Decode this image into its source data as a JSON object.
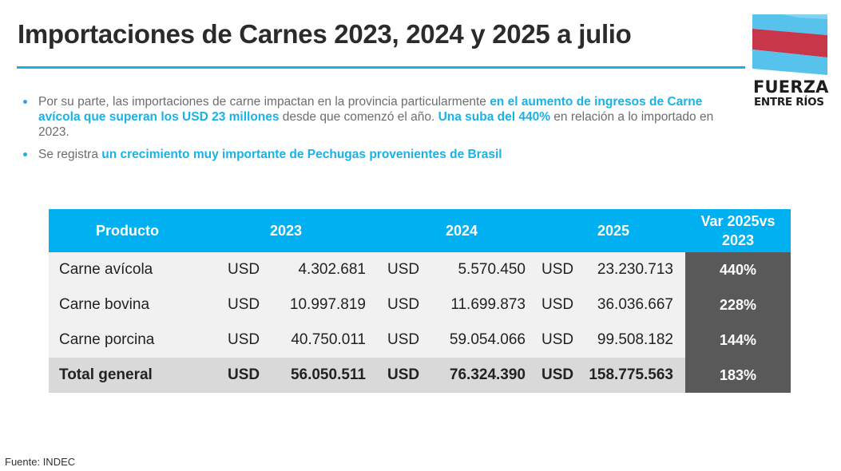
{
  "header": {
    "title": "Importaciones de Carnes 2023, 2024 y 2025 a julio"
  },
  "logo": {
    "line1": "FUERZA",
    "line2": "ENTRE RÍOS",
    "colors": {
      "blue": "#57c3ec",
      "red": "#c8364a",
      "white": "#ffffff"
    }
  },
  "bullets": [
    {
      "segments": [
        {
          "text": "Por su parte, las importaciones de carne impactan en la provincia particularmente ",
          "bold": false
        },
        {
          "text": "en el aumento de ingresos de Carne avícola que superan los USD 23 millones",
          "bold": true
        },
        {
          "text": " desde que comenzó el año. ",
          "bold": false
        },
        {
          "text": "Una suba del 440%",
          "bold": true
        },
        {
          "text": " en relación a lo importado en 2023.",
          "bold": false
        }
      ]
    },
    {
      "segments": [
        {
          "text": "Se registra ",
          "bold": false
        },
        {
          "text": "un crecimiento muy importante de Pechugas provenientes de Brasil",
          "bold": true
        }
      ]
    }
  ],
  "table": {
    "headers": [
      "Producto",
      "2023",
      "2024",
      "2025",
      "Var 2025vs 2023"
    ],
    "currency": "USD",
    "rows": [
      {
        "producto": "Carne avícola",
        "y2023": "4.302.681",
        "y2024": "5.570.450",
        "y2025": "23.230.713",
        "var": "440%"
      },
      {
        "producto": "Carne bovina",
        "y2023": "10.997.819",
        "y2024": "11.699.873",
        "y2025": "36.036.667",
        "var": "228%"
      },
      {
        "producto": "Carne porcina",
        "y2023": "40.750.011",
        "y2024": "59.054.066",
        "y2025": "99.508.182",
        "var": "144%"
      }
    ],
    "total": {
      "producto": "Total general",
      "y2023": "56.050.511",
      "y2024": "76.324.390",
      "y2025": "158.775.563",
      "var": "183%"
    }
  },
  "source": "Fuente: INDEC",
  "colors": {
    "accent": "#19b2e8",
    "header_bg": "#00b0f0",
    "row_bg": "#f1f1f1",
    "total_bg": "#d9d9d9",
    "var_bg": "#595959"
  }
}
